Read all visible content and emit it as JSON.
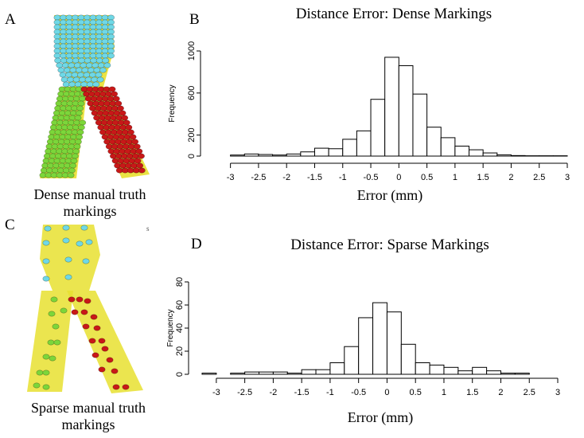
{
  "panels": {
    "a": {
      "letter": "A",
      "caption_line1": "Dense manual truth",
      "caption_line2": "markings"
    },
    "b": {
      "letter": "B"
    },
    "c": {
      "letter": "C",
      "caption_line1": "Sparse manual truth",
      "caption_line2": "markings",
      "stray_mark": "s"
    },
    "d": {
      "letter": "D"
    }
  },
  "colors": {
    "vessel": "#e8e030",
    "marker_cyan": "#6fd8e6",
    "marker_green": "#7cd63a",
    "marker_red": "#c81818",
    "bar_fill": "#ffffff",
    "bar_stroke": "#000000"
  },
  "icons": [
    "dense-bifurcation-3d-render",
    "sparse-bifurcation-3d-render"
  ],
  "chart_data": [
    {
      "type": "bar",
      "title": "Distance Error: Dense Markings",
      "xlabel": "Error (mm)",
      "ylabel": "Frequency",
      "bin_width": 0.25,
      "x_range": [
        -3.25,
        3.0
      ],
      "xlim": [
        -3.25,
        3.0
      ],
      "ylim": [
        0,
        1000
      ],
      "y_ticks": [
        0,
        200,
        600,
        1000
      ],
      "x_ticks": [
        -3,
        -2.5,
        -2,
        -1.5,
        -1,
        -0.5,
        0,
        0.5,
        1,
        1.5,
        2,
        2.5,
        3
      ],
      "x_tick_labels": [
        "-3",
        "-2.5",
        "-2",
        "-1.5",
        "-1",
        "-0.5",
        "0",
        "0.5",
        "1",
        "1.5",
        "2",
        "2.5",
        "3"
      ],
      "values": [
        0,
        10,
        20,
        15,
        10,
        20,
        40,
        75,
        70,
        160,
        240,
        540,
        940,
        860,
        590,
        275,
        175,
        95,
        60,
        30,
        12,
        5,
        3,
        3,
        3
      ],
      "grid": false,
      "legend": "none"
    },
    {
      "type": "bar",
      "title": "Distance Error: Sparse Markings",
      "xlabel": "Error (mm)",
      "ylabel": "Frequency",
      "bin_width": 0.25,
      "x_range": [
        -3.25,
        3.0
      ],
      "xlim": [
        -3.25,
        3.0
      ],
      "ylim": [
        0,
        80
      ],
      "y_ticks": [
        0,
        20,
        40,
        60,
        80
      ],
      "x_ticks": [
        -3,
        -2.5,
        -2,
        -1.5,
        -1,
        -0.5,
        0,
        0.5,
        1,
        1.5,
        2,
        2.5,
        3
      ],
      "x_tick_labels": [
        "-3",
        "-2.5",
        "-2",
        "-1.5",
        "-1",
        "-0.5",
        "0",
        "0.5",
        "1",
        "1.5",
        "2",
        "2.5",
        "3"
      ],
      "values": [
        1,
        0,
        1,
        2,
        2,
        2,
        1,
        4,
        4,
        10,
        24,
        49,
        62,
        54,
        26,
        10,
        8,
        6,
        3,
        6,
        3,
        1,
        1,
        0,
        0
      ],
      "grid": false,
      "legend": "none"
    }
  ]
}
